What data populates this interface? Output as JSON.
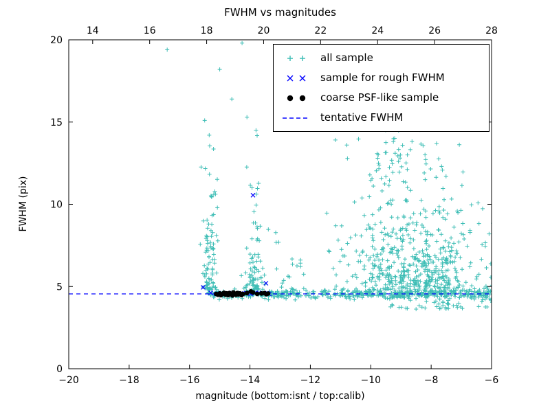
{
  "chart_data": {
    "type": "scatter",
    "title": "FWHM vs magnitudes",
    "xlabel": "magnitude (bottom:isnt / top:calib)",
    "ylabel": "FWHM (pix)",
    "axes": {
      "x_bottom": {
        "lim": [
          -20,
          -6
        ],
        "ticks": [
          -20,
          -18,
          -16,
          -14,
          -12,
          -10,
          -8,
          -6
        ],
        "labels": [
          "−20",
          "−18",
          "−16",
          "−14",
          "−12",
          "−10",
          "−8",
          "−6"
        ]
      },
      "x_top": {
        "lim": [
          13.16,
          28.0
        ],
        "ticks": [
          14,
          16,
          18,
          20,
          22,
          24,
          26,
          28
        ],
        "labels": [
          "14",
          "16",
          "18",
          "20",
          "22",
          "24",
          "26",
          "28"
        ]
      },
      "y": {
        "lim": [
          0,
          20
        ],
        "ticks": [
          0,
          5,
          10,
          15,
          20
        ],
        "labels": [
          "0",
          "5",
          "10",
          "15",
          "20"
        ]
      }
    },
    "colors": {
      "all_sample": "#3dbdb5",
      "rough_sample": "#0000ff",
      "psf_sample": "#000000",
      "fwhm_line": "#0000ff",
      "axis": "#000000"
    },
    "tentative_fwhm": 4.55,
    "seed": 42,
    "series": [
      {
        "name": "all sample",
        "marker": "plus",
        "clusters": [
          {
            "name": "band",
            "count": 430,
            "x": {
              "dist": "uniform",
              "min": -15.4,
              "max": -5.1
            },
            "y": {
              "dist": "normal",
              "mean": 4.55,
              "sd": 0.15
            }
          },
          {
            "name": "band-right-low",
            "count": 70,
            "x": {
              "dist": "uniform",
              "min": -9.5,
              "max": -5.1
            },
            "y": {
              "dist": "uniform",
              "min": 3.6,
              "max": 4.45
            }
          },
          {
            "name": "plume-left",
            "count": 90,
            "x": {
              "dist": "normal",
              "mean": -15.35,
              "sd": 0.13
            },
            "y": {
              "dist": "exp",
              "min": 4.7,
              "scale": 2.6,
              "max": 14.0
            }
          },
          {
            "name": "plume-mid",
            "count": 78,
            "x": {
              "dist": "normal",
              "mean": -13.85,
              "sd": 0.16
            },
            "y": {
              "dist": "exp",
              "min": 4.7,
              "scale": 2.8,
              "max": 14.6
            }
          },
          {
            "name": "sparse-mid",
            "count": 18,
            "x": {
              "dist": "uniform",
              "min": -13.3,
              "max": -12.2
            },
            "y": {
              "dist": "exp",
              "min": 4.8,
              "scale": 2.0,
              "max": 10.0
            }
          },
          {
            "name": "cloud",
            "count": 650,
            "x": {
              "dist": "normal",
              "mean": -8.4,
              "sd": 1.25,
              "min": -12.6,
              "max": -5.1
            },
            "y": {
              "dist": "exp",
              "min": 4.4,
              "scale": 2.4,
              "max": 15.2
            }
          },
          {
            "name": "cloud-high",
            "count": 40,
            "x": {
              "dist": "normal",
              "mean": -9.3,
              "sd": 0.8,
              "min": -11.5,
              "max": -7.5
            },
            "y": {
              "dist": "uniform",
              "min": 11.0,
              "max": 15.0
            }
          }
        ],
        "points": [
          [
            -16.74,
            19.4
          ],
          [
            -14.26,
            19.8
          ],
          [
            -15.0,
            18.2
          ],
          [
            -14.6,
            16.4
          ],
          [
            -15.5,
            15.1
          ],
          [
            -14.1,
            15.3
          ],
          [
            -15.35,
            14.2
          ],
          [
            -13.8,
            14.5
          ]
        ]
      },
      {
        "name": "sample for rough FWHM",
        "marker": "x",
        "points": [
          [
            -15.55,
            4.95
          ],
          [
            -15.3,
            4.62
          ],
          [
            -15.12,
            4.55
          ],
          [
            -14.93,
            4.6
          ],
          [
            -14.78,
            4.55
          ],
          [
            -14.6,
            4.62
          ],
          [
            -14.45,
            4.55
          ],
          [
            -14.3,
            4.58
          ],
          [
            -14.12,
            4.6
          ],
          [
            -13.98,
            4.55
          ],
          [
            -13.9,
            10.55
          ],
          [
            -13.84,
            4.6
          ],
          [
            -13.7,
            4.62
          ],
          [
            -13.56,
            4.58
          ],
          [
            -13.47,
            5.2
          ],
          [
            -13.42,
            4.6
          ],
          [
            -13.36,
            4.55
          ]
        ]
      },
      {
        "name": "coarse PSF-like sample",
        "marker": "circle",
        "points": [
          [
            -15.12,
            4.55
          ],
          [
            -15.06,
            4.5
          ],
          [
            -15.0,
            4.58
          ],
          [
            -14.96,
            4.47
          ],
          [
            -14.9,
            4.55
          ],
          [
            -14.86,
            4.62
          ],
          [
            -14.8,
            4.5
          ],
          [
            -14.77,
            4.58
          ],
          [
            -14.72,
            4.48
          ],
          [
            -14.68,
            4.6
          ],
          [
            -14.63,
            4.52
          ],
          [
            -14.58,
            4.46
          ],
          [
            -14.55,
            4.64
          ],
          [
            -14.5,
            4.55
          ],
          [
            -14.46,
            4.5
          ],
          [
            -14.42,
            4.6
          ],
          [
            -14.38,
            4.52
          ],
          [
            -14.33,
            4.58
          ],
          [
            -14.28,
            4.48
          ],
          [
            -14.23,
            4.55
          ],
          [
            -14.1,
            4.6
          ],
          [
            -13.97,
            4.7
          ],
          [
            -13.9,
            4.64
          ],
          [
            -13.76,
            4.55
          ],
          [
            -13.62,
            4.58
          ],
          [
            -13.52,
            4.6
          ],
          [
            -13.46,
            4.53
          ],
          [
            -13.4,
            4.57
          ]
        ]
      },
      {
        "name": "tentative FWHM",
        "style": "dashed-line",
        "y": 4.55
      }
    ],
    "legend": {
      "items": [
        {
          "label": "all sample"
        },
        {
          "label": "sample for rough FWHM"
        },
        {
          "label": "coarse PSF-like sample"
        },
        {
          "label": "tentative FWHM"
        }
      ]
    }
  }
}
